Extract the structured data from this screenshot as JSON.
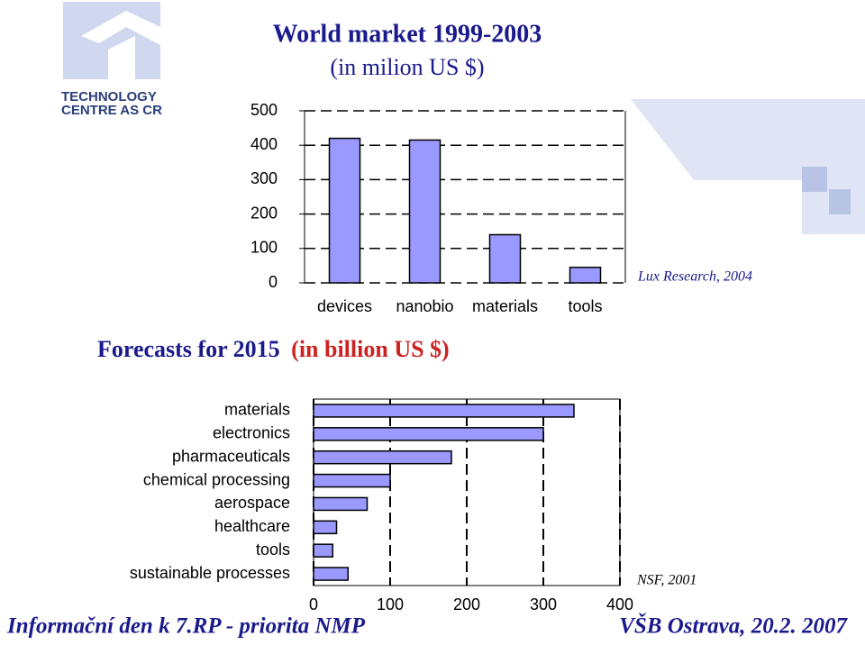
{
  "logo": {
    "line1": "TECHNOLOGY",
    "line2": "CENTRE AS CR"
  },
  "footer": {
    "left": "Informační den k 7.RP - priorita NMP",
    "right": "VŠB Ostrava, 20.2. 2007"
  },
  "chart_data": [
    {
      "type": "bar",
      "title": "World market 1999-2003",
      "subtitle": "(in milion US $)",
      "categories": [
        "devices",
        "nanobio",
        "materials",
        "tools"
      ],
      "values": [
        420,
        415,
        140,
        45
      ],
      "color": "#9999ff",
      "ylim": [
        0,
        500
      ],
      "yticks": [
        0,
        100,
        200,
        300,
        400,
        500
      ],
      "grid": true,
      "source": "Lux Research, 2004"
    },
    {
      "type": "bar",
      "orientation": "horizontal",
      "title": "Forecasts for 2015",
      "subtitle": "(in billion US $)",
      "categories": [
        "materials",
        "electronics",
        "pharmaceuticals",
        "chemical processing",
        "aerospace",
        "healthcare",
        "tools",
        "sustainable processes"
      ],
      "values": [
        340,
        300,
        180,
        100,
        70,
        30,
        25,
        45
      ],
      "color": "#9999ff",
      "xlim": [
        0,
        400
      ],
      "xticks": [
        0,
        100,
        200,
        300,
        400
      ],
      "grid": true,
      "source": "NSF, 2001"
    }
  ]
}
